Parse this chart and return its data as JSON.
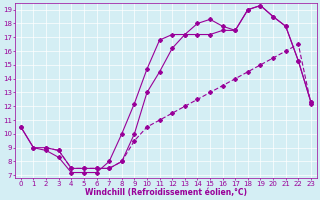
{
  "xlabel": "Windchill (Refroidissement éolien,°C)",
  "line_color": "#990099",
  "bg_color": "#d4eef4",
  "grid_color": "#ffffff",
  "xlim": [
    -0.5,
    23.5
  ],
  "ylim": [
    6.8,
    19.5
  ],
  "xticks": [
    0,
    1,
    2,
    3,
    4,
    5,
    6,
    7,
    8,
    9,
    10,
    11,
    12,
    13,
    14,
    15,
    16,
    17,
    18,
    19,
    20,
    21,
    22,
    23
  ],
  "yticks": [
    7,
    8,
    9,
    10,
    11,
    12,
    13,
    14,
    15,
    16,
    17,
    18,
    19
  ],
  "line1_x": [
    0,
    1,
    2,
    3,
    4,
    5,
    6,
    7,
    8,
    9,
    10,
    11,
    12,
    13,
    14,
    15,
    16,
    17,
    18,
    19,
    20,
    21,
    22,
    23
  ],
  "line1_y": [
    10.5,
    9.0,
    8.8,
    8.3,
    7.2,
    7.2,
    7.2,
    8.0,
    10.0,
    12.2,
    14.7,
    16.8,
    17.2,
    17.2,
    18.0,
    18.3,
    17.8,
    17.5,
    19.0,
    19.3,
    18.5,
    17.8,
    15.3,
    12.3
  ],
  "line2_x": [
    0,
    1,
    2,
    3,
    4,
    5,
    6,
    7,
    8,
    9,
    10,
    11,
    12,
    13,
    14,
    15,
    16,
    17,
    18,
    19,
    20,
    21,
    22,
    23
  ],
  "line2_y": [
    10.5,
    9.0,
    9.0,
    8.8,
    7.5,
    7.5,
    7.5,
    7.5,
    8.0,
    10.0,
    13.0,
    14.5,
    16.2,
    17.2,
    17.2,
    17.2,
    17.5,
    17.5,
    19.0,
    19.3,
    18.5,
    17.8,
    15.3,
    12.3
  ],
  "line3_x": [
    2,
    3,
    4,
    5,
    6,
    7,
    8,
    9,
    10,
    11,
    12,
    13,
    14,
    15,
    16,
    17,
    18,
    19,
    20,
    21,
    22,
    23
  ],
  "line3_y": [
    9.0,
    8.8,
    7.5,
    7.5,
    7.5,
    7.5,
    8.0,
    9.5,
    10.5,
    11.0,
    11.5,
    12.0,
    12.5,
    13.0,
    13.5,
    14.0,
    14.5,
    15.0,
    15.5,
    16.0,
    16.5,
    12.2
  ],
  "marker": "D",
  "markersize": 2,
  "linewidth": 0.8,
  "xlabel_fontsize": 5.5,
  "tick_fontsize": 5
}
